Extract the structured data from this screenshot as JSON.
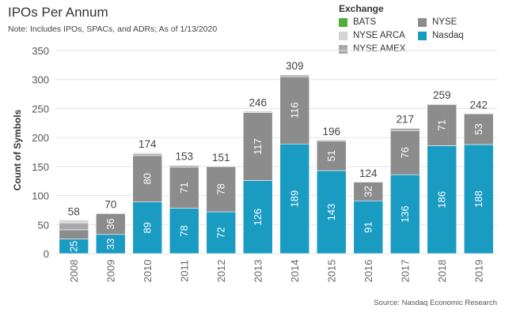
{
  "header": {
    "title": "IPOs Per Annum",
    "note": "Note: Includes IPOs, SPACs, and ADRs; As of  1/13/2020"
  },
  "source": "Source: Nasdaq Economic Research",
  "legend": {
    "title": "Exchange",
    "items": [
      {
        "label": "BATS",
        "color": "#4fae3a"
      },
      {
        "label": "NYSE",
        "color": "#8c8c8c"
      },
      {
        "label": "NYSE ARCA",
        "color": "#d4d4d4"
      },
      {
        "label": "Nasdaq",
        "color": "#1a9bc2"
      },
      {
        "label": "NYSE AMEX",
        "color": "#a9a9a9"
      }
    ]
  },
  "chart_data": {
    "type": "bar",
    "stacked": true,
    "title": "IPOs Per Annum",
    "xlabel": "",
    "ylabel": "Count of Symbols",
    "ylim": [
      0,
      350
    ],
    "yticks": [
      0,
      50,
      100,
      150,
      200,
      250,
      300,
      350
    ],
    "grid": true,
    "legend_position": "top-right",
    "categories": [
      "2008",
      "2009",
      "2010",
      "2011",
      "2012",
      "2013",
      "2014",
      "2015",
      "2016",
      "2017",
      "2018",
      "2019"
    ],
    "totals": [
      58,
      70,
      174,
      153,
      151,
      246,
      309,
      196,
      124,
      217,
      259,
      242
    ],
    "series": [
      {
        "name": "Nasdaq",
        "color": "#1a9bc2",
        "values": [
          25,
          33,
          89,
          78,
          72,
          126,
          189,
          143,
          91,
          136,
          186,
          188
        ],
        "labeled": true
      },
      {
        "name": "NYSE",
        "color": "#8c8c8c",
        "values": [
          16,
          36,
          80,
          71,
          78,
          117,
          116,
          51,
          32,
          76,
          71,
          53
        ],
        "labeled": [
          false,
          true,
          true,
          true,
          true,
          true,
          true,
          true,
          true,
          true,
          true,
          true
        ]
      },
      {
        "name": "NYSE AMEX",
        "color": "#a9a9a9",
        "values": [
          12,
          1,
          3,
          3,
          1,
          2,
          3,
          2,
          0,
          4,
          1,
          1
        ],
        "labeled": false
      },
      {
        "name": "NYSE ARCA",
        "color": "#d4d4d4",
        "values": [
          5,
          0,
          2,
          1,
          0,
          1,
          1,
          0,
          0,
          1,
          1,
          0
        ],
        "labeled": false
      },
      {
        "name": "BATS",
        "color": "#4fae3a",
        "values": [
          0,
          0,
          0,
          0,
          0,
          0,
          0,
          0,
          1,
          0,
          0,
          0
        ],
        "labeled": false
      }
    ]
  }
}
